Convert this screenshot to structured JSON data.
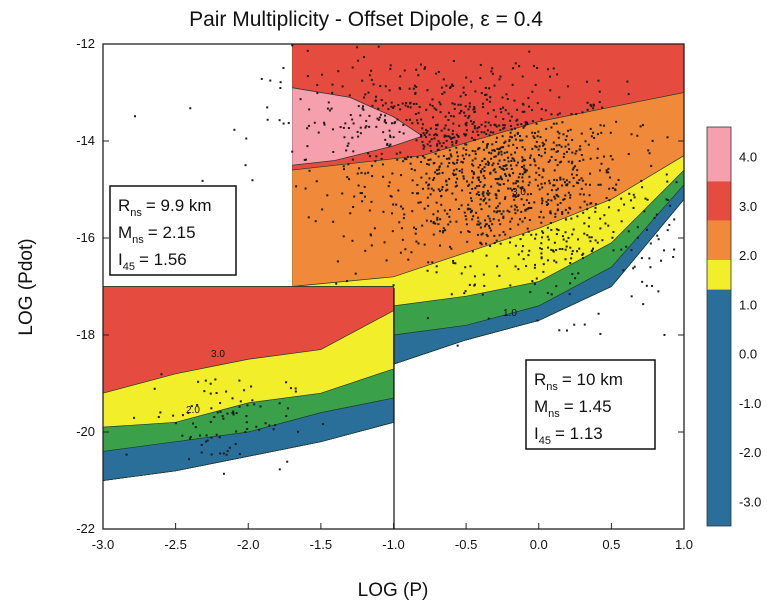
{
  "chart_data": {
    "type": "heatmap",
    "title": "Pair Multiplicity - Offset Dipole,    ε = 0.4",
    "xlabel": "LOG (P)",
    "ylabel": "LOG (Pdot)",
    "xlim": [
      -3.0,
      1.0
    ],
    "ylim": [
      -22,
      -12
    ],
    "xticks": [
      "-3.0",
      "-2.5",
      "-2.0",
      "-1.5",
      "-1.0",
      "-0.5",
      "0.0",
      "0.5",
      "1.0"
    ],
    "yticks": [
      "-12",
      "-14",
      "-16",
      "-18",
      "-20",
      "-22"
    ],
    "colorbar": {
      "labels": [
        "4.0",
        "3.0",
        "2.0",
        "1.0",
        "0.0",
        "-1.0",
        "-2.0",
        "-3.0"
      ],
      "range": [
        -3.5,
        4.6
      ],
      "bands": [
        {
          "from": -3.5,
          "to": 1.3,
          "color": "#2a6f9a"
        },
        {
          "from": 1.3,
          "to": 1.9,
          "color": "#f3ee2a"
        },
        {
          "from": 1.9,
          "to": 2.7,
          "color": "#f08a3a"
        },
        {
          "from": 2.7,
          "to": 3.5,
          "color": "#e54b3e"
        },
        {
          "from": 3.5,
          "to": 4.6,
          "color": "#f6a0ad"
        }
      ]
    },
    "contour_labels": [
      "3.0",
      "2.0",
      "3.0",
      "1.0"
    ],
    "panels": [
      {
        "name": "upper-right",
        "x_range": [
          -1.7,
          1.0
        ],
        "band_upper_edges": [
          {
            "color": "#f6a0ad",
            "edge": [
              [
                -1.7,
                -12.8
              ],
              [
                -1.0,
                -13.4
              ],
              [
                -0.75,
                -13.8
              ]
            ]
          },
          {
            "color": "#e54b3e",
            "edge": [
              [
                -1.7,
                -12.0
              ],
              [
                1.0,
                -12.0
              ]
            ]
          },
          {
            "color": "#f08a3a",
            "edge": [
              [
                -1.7,
                -14.6
              ],
              [
                -0.8,
                -14.3
              ],
              [
                0.0,
                -13.6
              ],
              [
                0.5,
                -13.3
              ],
              [
                1.0,
                -13.0
              ]
            ]
          },
          {
            "color": "#f3ee2a",
            "edge": [
              [
                -1.7,
                -17.0
              ],
              [
                -1.0,
                -16.8
              ],
              [
                -0.5,
                -16.3
              ],
              [
                0.0,
                -15.8
              ],
              [
                0.5,
                -15.2
              ],
              [
                1.0,
                -14.3
              ]
            ]
          },
          {
            "color": "#3aa04a",
            "edge": [
              [
                -1.7,
                -17.7
              ],
              [
                -1.0,
                -17.4
              ],
              [
                -0.5,
                -17.2
              ],
              [
                0.0,
                -16.9
              ],
              [
                0.5,
                -16.1
              ],
              [
                1.0,
                -14.6
              ]
            ]
          },
          {
            "color": "#2a6f9a",
            "edge": [
              [
                -1.7,
                -18.2
              ],
              [
                -1.0,
                -18.0
              ],
              [
                -0.5,
                -17.8
              ],
              [
                0.0,
                -17.4
              ],
              [
                0.5,
                -16.6
              ],
              [
                1.0,
                -14.9
              ]
            ]
          }
        ],
        "floor": [
          [
            -1.7,
            -18.6
          ],
          [
            -1.0,
            -18.6
          ],
          [
            -0.5,
            -18.1
          ],
          [
            0.0,
            -17.7
          ],
          [
            0.5,
            -17.0
          ],
          [
            1.0,
            -15.2
          ]
        ]
      },
      {
        "name": "lower-left",
        "x_range": [
          -3.0,
          -1.0
        ],
        "band_upper_edges": [
          {
            "color": "#f08a3a",
            "edge": [
              [
                -3.0,
                -17.0
              ],
              [
                -1.0,
                -17.0
              ]
            ]
          },
          {
            "color": "#e54b3e",
            "edge": [
              [
                -3.0,
                -17.0
              ],
              [
                -1.0,
                -17.0
              ]
            ]
          },
          {
            "color": "#f3ee2a",
            "edge": [
              [
                -3.0,
                -19.2
              ],
              [
                -2.5,
                -18.8
              ],
              [
                -2.0,
                -18.5
              ],
              [
                -1.5,
                -18.3
              ],
              [
                -1.0,
                -17.5
              ]
            ]
          },
          {
            "color": "#3aa04a",
            "edge": [
              [
                -3.0,
                -19.9
              ],
              [
                -2.5,
                -19.8
              ],
              [
                -2.0,
                -19.4
              ],
              [
                -1.5,
                -19.2
              ],
              [
                -1.0,
                -18.7
              ]
            ]
          },
          {
            "color": "#2a6f9a",
            "edge": [
              [
                -3.0,
                -20.4
              ],
              [
                -2.5,
                -20.2
              ],
              [
                -2.0,
                -20.0
              ],
              [
                -1.5,
                -19.6
              ],
              [
                -1.0,
                -19.3
              ]
            ]
          }
        ],
        "floor": [
          [
            -3.0,
            -21.0
          ],
          [
            -2.5,
            -20.8
          ],
          [
            -2.0,
            -20.5
          ],
          [
            -1.5,
            -20.2
          ],
          [
            -1.0,
            -19.8
          ]
        ]
      }
    ],
    "scatter_clusters": [
      {
        "cx": -0.3,
        "cy": -14.6,
        "sx": 0.45,
        "sy": 0.9,
        "n": 900
      },
      {
        "cx": -0.9,
        "cy": -13.6,
        "sx": 0.5,
        "sy": 0.7,
        "n": 260
      },
      {
        "cx": 0.2,
        "cy": -16.0,
        "sx": 0.6,
        "sy": 0.8,
        "n": 260
      },
      {
        "cx": -2.2,
        "cy": -19.7,
        "sx": 0.25,
        "sy": 0.5,
        "n": 90
      }
    ],
    "parameter_boxes": [
      {
        "lines": [
          {
            "main": "R",
            "sub": "ns",
            "value": "= 9.9 km"
          },
          {
            "main": "M",
            "sub": "ns",
            "value": "= 2.15"
          },
          {
            "main": "I",
            "sub": "45",
            "value": "= 1.56"
          }
        ]
      },
      {
        "lines": [
          {
            "main": "R",
            "sub": "ns",
            "value": "= 10 km"
          },
          {
            "main": "M",
            "sub": "ns",
            "value": "= 1.45"
          },
          {
            "main": "I",
            "sub": "45",
            "value": "= 1.13"
          }
        ]
      }
    ]
  }
}
